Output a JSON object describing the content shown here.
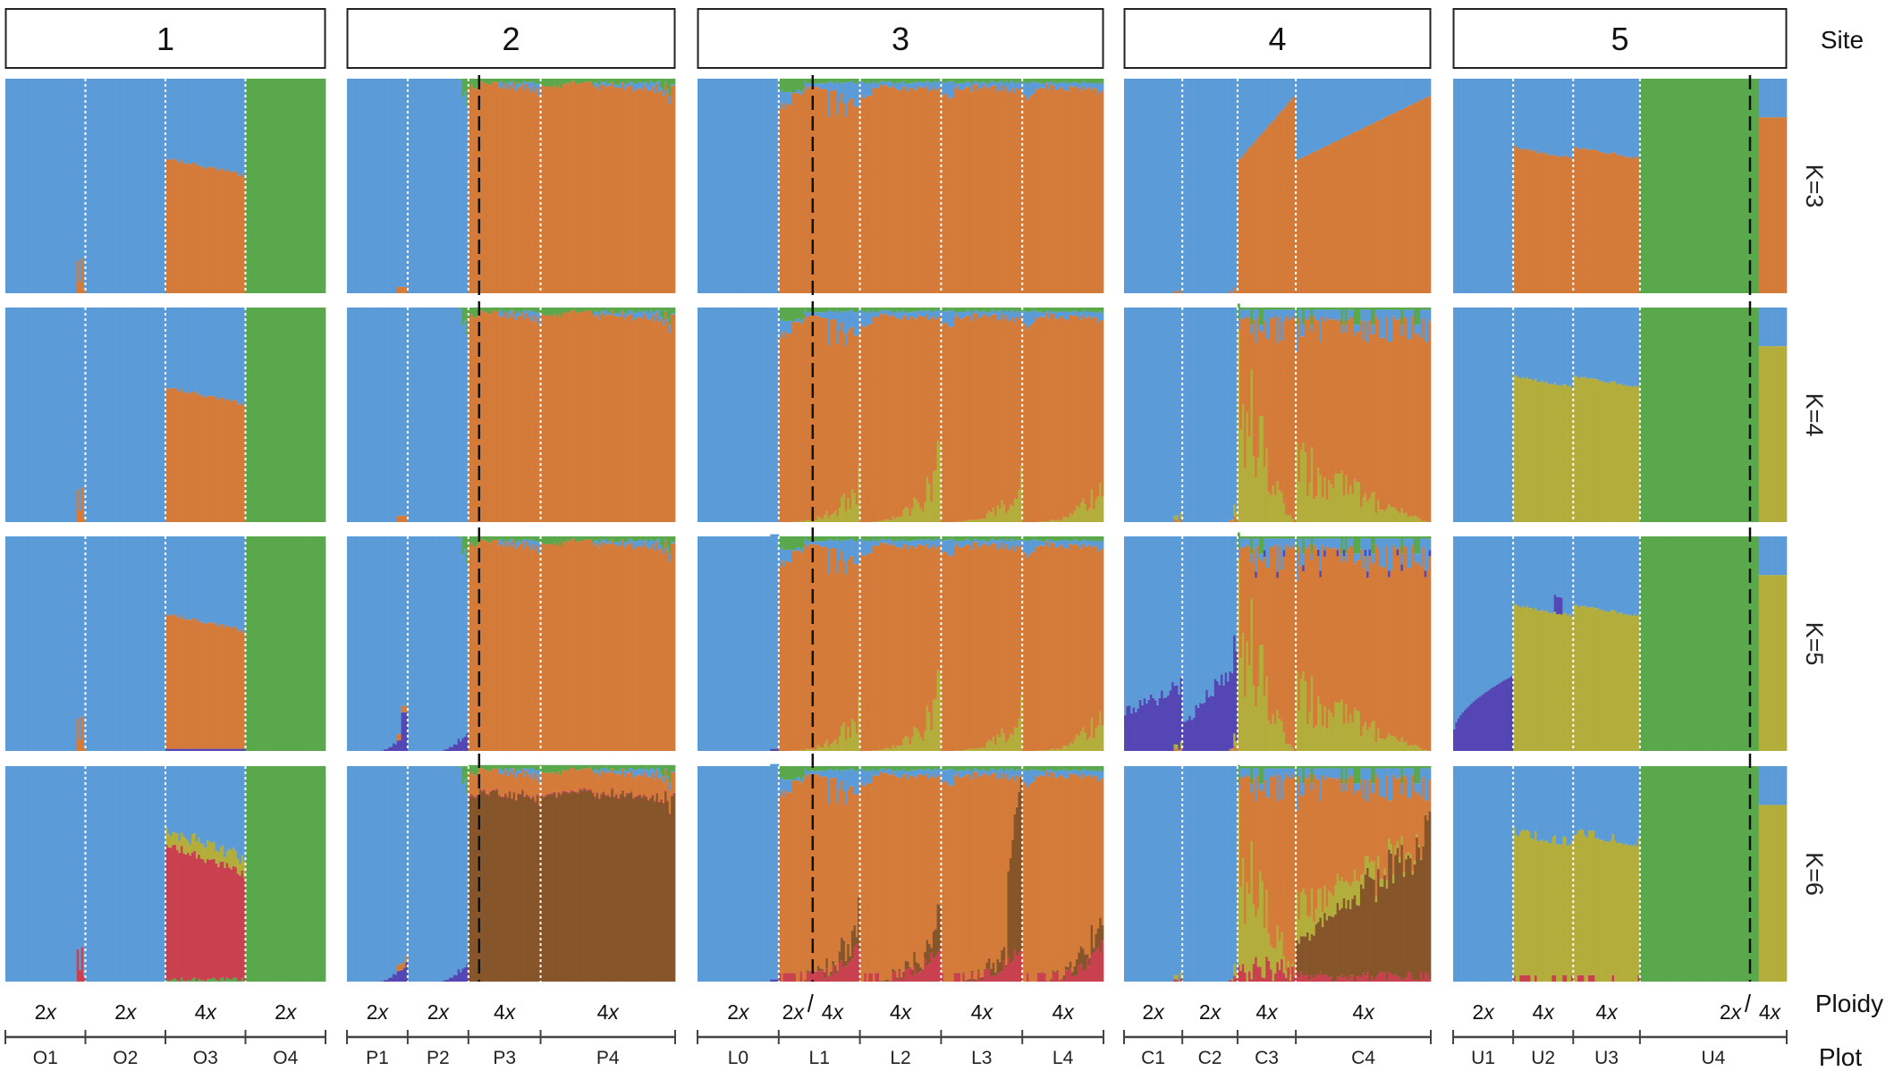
{
  "chart_data": {
    "type": "stacked-bar",
    "title": "",
    "colors": {
      "blue": "#5b9bd8",
      "orange": "#d47b3a",
      "green": "#5aa84c",
      "olive": "#b3ad3c",
      "purple": "#5446b4",
      "red": "#c9404f",
      "brown": "#87552a"
    },
    "row_title": "Site",
    "ploidy_title": "Ploidy",
    "plot_title": "Plot",
    "k_rows": [
      {
        "label": "K=3"
      },
      {
        "label": "K=4"
      },
      {
        "label": "K=5"
      },
      {
        "label": "K=6"
      }
    ],
    "sites": [
      {
        "label": "1",
        "plots": [
          {
            "name": "O1",
            "ploidy": "2x"
          },
          {
            "name": "O2",
            "ploidy": "2x"
          },
          {
            "name": "O3",
            "ploidy": "4x"
          },
          {
            "name": "O4",
            "ploidy": "2x"
          }
        ]
      },
      {
        "label": "2",
        "plots": [
          {
            "name": "P1",
            "ploidy": "2x"
          },
          {
            "name": "P2",
            "ploidy": "2x"
          },
          {
            "name": "P3",
            "ploidy": "4x"
          },
          {
            "name": "P4",
            "ploidy": "4x"
          }
        ]
      },
      {
        "label": "3",
        "plots": [
          {
            "name": "L0",
            "ploidy": "2x"
          },
          {
            "name": "L1",
            "ploidy": "2x|4x"
          },
          {
            "name": "L2",
            "ploidy": "4x"
          },
          {
            "name": "L3",
            "ploidy": "4x"
          },
          {
            "name": "L4",
            "ploidy": "4x"
          }
        ]
      },
      {
        "label": "4",
        "plots": [
          {
            "name": "C1",
            "ploidy": "2x"
          },
          {
            "name": "C2",
            "ploidy": "2x"
          },
          {
            "name": "C3",
            "ploidy": "4x"
          },
          {
            "name": "C4",
            "ploidy": "4x"
          }
        ]
      },
      {
        "label": "5",
        "plots": [
          {
            "name": "U1",
            "ploidy": "2x"
          },
          {
            "name": "U2",
            "ploidy": "4x"
          },
          {
            "name": "U3",
            "ploidy": "4x"
          },
          {
            "name": "U4",
            "ploidy": "2x|4x"
          }
        ]
      }
    ]
  }
}
